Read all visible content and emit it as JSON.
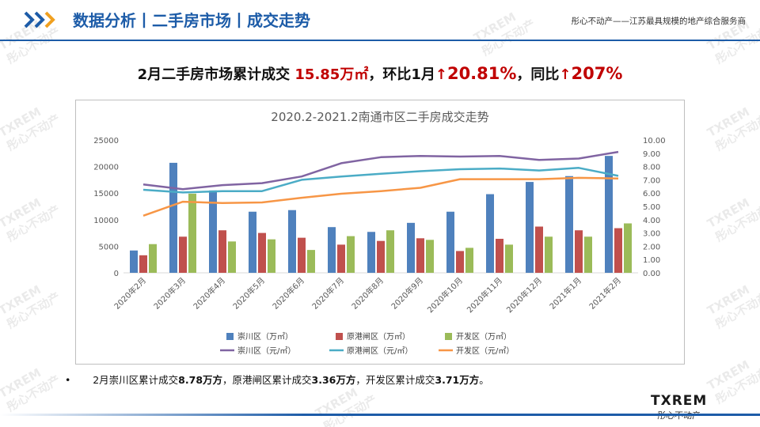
{
  "header": {
    "title": "数据分析丨二手房市场丨成交走势",
    "slogan": "彤心不动产——江苏最具规模的地产综合服务商"
  },
  "headline": {
    "part1": "2月二手房市场累计成交",
    "value1": "15.85万㎡",
    "part2": "，环比1月",
    "value2": "20.81%",
    "part3": "，同比",
    "value3": "207%"
  },
  "bullet": {
    "lead": "2月崇川区累计成交",
    "v1": "8.78万方",
    "mid1": "，原港闸区累计成交",
    "v2": "3.36万方",
    "mid2": "，开发区累计成交",
    "v3": "3.71万方",
    "tail": "。"
  },
  "watermark": {
    "brand": "TXREM",
    "name": "彤心不动产"
  },
  "footer": {
    "brand": "TXREM",
    "name": "彤心不动产"
  },
  "colors": {
    "primary": "#1d5ca8",
    "accent": "#c00000",
    "bar1": "#4f81bd",
    "bar2": "#c0504d",
    "bar3": "#9bbb59",
    "line1": "#8064a2",
    "line2": "#4bacc6",
    "line3": "#f79646"
  },
  "chart_data": {
    "type": "bar",
    "title": "2020.2-2021.2南通市区二手房成交走势",
    "categories": [
      "2020年2月",
      "2020年3月",
      "2020年4月",
      "2020年5月",
      "2020年6月",
      "2020年7月",
      "2020年8月",
      "2020年9月",
      "2020年10月",
      "2020年11月",
      "2020年12月",
      "2021年1月",
      "2021年2月"
    ],
    "y_left": {
      "min": 0,
      "max": 25000,
      "ticks": [
        "0",
        "5000",
        "10000",
        "15000",
        "20000",
        "25000"
      ]
    },
    "y_right": {
      "min": 0,
      "max": 10,
      "ticks": [
        "0.00",
        "1.00",
        "2.00",
        "3.00",
        "4.00",
        "5.00",
        "6.00",
        "7.00",
        "8.00",
        "9.00",
        "10.00"
      ]
    },
    "bar_series": [
      {
        "name": "崇川区（万㎡）",
        "axis": "left",
        "values": [
          4200,
          20700,
          15500,
          11500,
          11800,
          8600,
          7700,
          9400,
          11500,
          14800,
          17100,
          18200,
          22000
        ]
      },
      {
        "name": "原港闸区（万㎡）",
        "axis": "left",
        "values": [
          3300,
          6800,
          8000,
          7500,
          6600,
          5300,
          6000,
          6500,
          4100,
          6400,
          8700,
          8000,
          8400
        ]
      },
      {
        "name": "开发区（万㎡）",
        "axis": "left",
        "values": [
          5400,
          14900,
          5900,
          6300,
          4300,
          6900,
          8000,
          6200,
          4700,
          5300,
          6800,
          6800,
          9300
        ]
      }
    ],
    "line_series": [
      {
        "name": "崇川区（元/㎡）",
        "axis": "right",
        "values": [
          6.65,
          6.3,
          6.6,
          6.75,
          7.25,
          8.25,
          8.7,
          8.8,
          8.75,
          8.8,
          8.5,
          8.6,
          9.1
        ]
      },
      {
        "name": "原港闸区（元/㎡）",
        "axis": "right",
        "values": [
          6.25,
          6.05,
          6.15,
          6.15,
          7.0,
          7.25,
          7.45,
          7.65,
          7.8,
          7.85,
          7.7,
          7.9,
          7.3
        ]
      },
      {
        "name": "开发区（元/㎡）",
        "axis": "right",
        "values": [
          4.3,
          5.35,
          5.25,
          5.3,
          5.65,
          5.95,
          6.15,
          6.4,
          7.05,
          7.05,
          7.05,
          7.15,
          7.1
        ]
      }
    ],
    "legend": "bottom",
    "grid": false
  }
}
